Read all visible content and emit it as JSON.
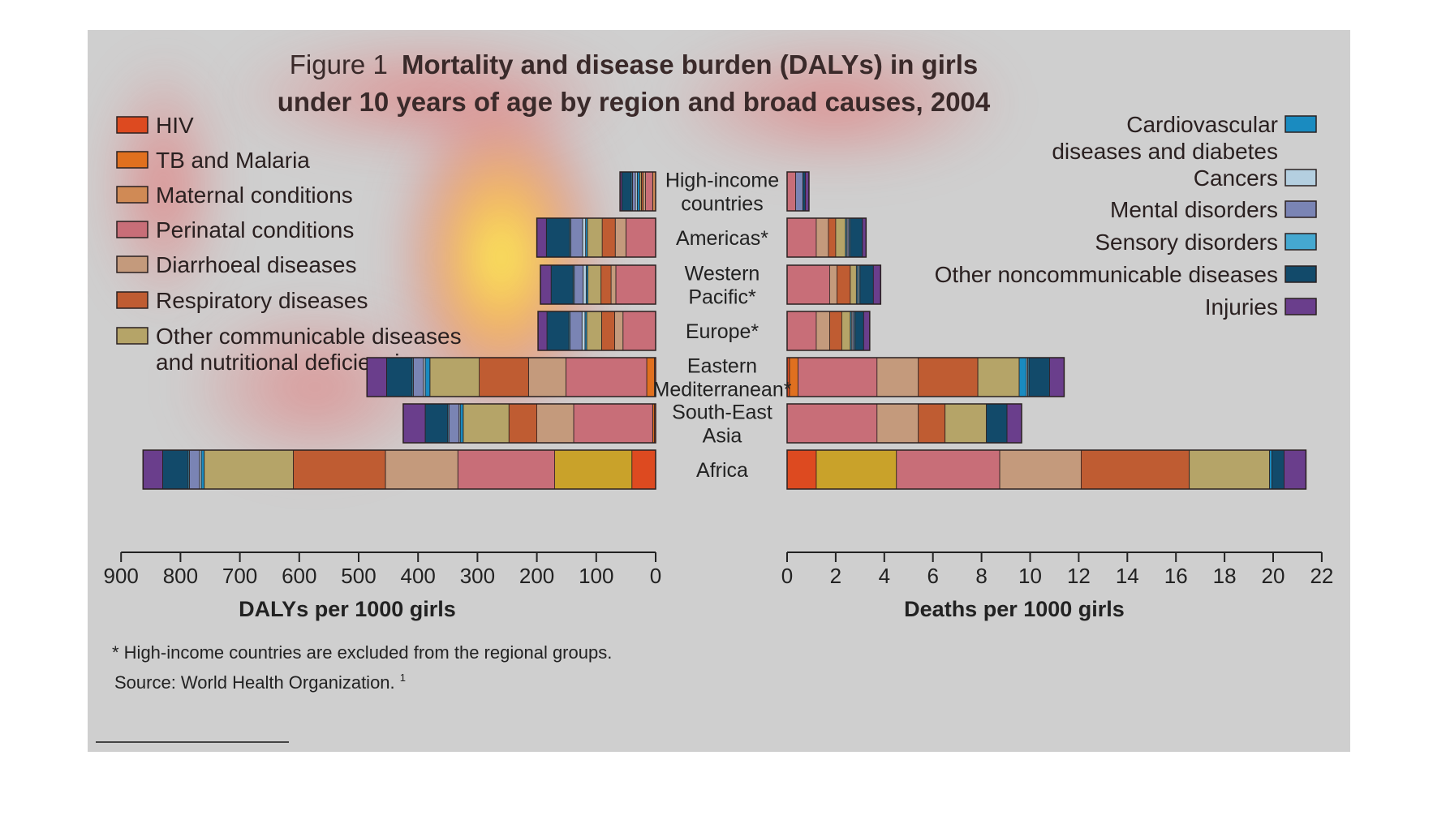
{
  "title": {
    "prefix": "Figure 1",
    "line1": "Mortality and disease burden (DALYs) in girls",
    "line2": "under 10 years of age by region and broad causes, 2004"
  },
  "causes": [
    {
      "key": "hiv",
      "label": "HIV",
      "color": "#dd4a20"
    },
    {
      "key": "tb",
      "label": "TB and Malaria",
      "color": "#e0701f"
    },
    {
      "key": "maternal",
      "label": "Maternal conditions",
      "color": "#d08a55"
    },
    {
      "key": "perinatal",
      "label": "Perinatal conditions",
      "color": "#c86e78"
    },
    {
      "key": "diarrhoeal",
      "label": "Diarrhoeal diseases",
      "color": "#c49a7c"
    },
    {
      "key": "respiratory",
      "label": "Respiratory diseases",
      "color": "#bf5c32"
    },
    {
      "key": "other_comm",
      "label": "Other communicable diseases\nand nutritional deficiencies",
      "color": "#b5a468"
    },
    {
      "key": "cardio",
      "label": "Cardiovascular\ndiseases and diabetes",
      "color": "#1a8bc0"
    },
    {
      "key": "cancers",
      "label": "Cancers",
      "color": "#b4cfe0"
    },
    {
      "key": "mental",
      "label": "Mental disorders",
      "color": "#7a84b4"
    },
    {
      "key": "sensory",
      "label": "Sensory disorders",
      "color": "#45a8d0"
    },
    {
      "key": "other_ncd",
      "label": "Other noncommunicable diseases",
      "color": "#124a6a"
    },
    {
      "key": "injuries",
      "label": "Injuries",
      "color": "#6a3e8c"
    }
  ],
  "africa_yellow": "#c9a22a",
  "chart_data": [
    {
      "type": "bar",
      "orientation": "horizontal-stacked",
      "direction": "right-to-left",
      "xlabel": "DALYs per 1000 girls",
      "xlim": [
        900,
        0
      ],
      "ticks": [
        "900",
        "800",
        "700",
        "600",
        "500",
        "400",
        "300",
        "200",
        "100",
        "0"
      ],
      "categories": [
        "High-income\ncountries",
        "Americas*",
        "Western\nPacific*",
        "Europe*",
        "Eastern\nMediterranean*",
        "South-East\nAsia",
        "Africa"
      ],
      "series": [
        {
          "name": "HIV",
          "values": [
            0,
            0,
            0,
            0,
            2,
            2,
            40
          ]
        },
        {
          "name": "TB and Malaria",
          "values": [
            0,
            0,
            0,
            0,
            13,
            3,
            130
          ]
        },
        {
          "name": "Maternal conditions",
          "values": [
            5,
            0,
            0,
            0,
            0,
            0,
            0
          ]
        },
        {
          "name": "Perinatal conditions",
          "values": [
            12,
            50,
            67,
            55,
            136,
            133,
            163
          ]
        },
        {
          "name": "Diarrhoeal diseases",
          "values": [
            4,
            18,
            8,
            14,
            63,
            62,
            122
          ]
        },
        {
          "name": "Respiratory diseases",
          "values": [
            3,
            22,
            17,
            22,
            83,
            47,
            155
          ]
        },
        {
          "name": "Other communicable diseases\nand nutritional deficiencies",
          "values": [
            3,
            25,
            22,
            25,
            83,
            77,
            150
          ]
        },
        {
          "name": "Cardiovascular\ndiseases and diabetes",
          "values": [
            4,
            3,
            3,
            3,
            8,
            5,
            5
          ]
        },
        {
          "name": "Cancers",
          "values": [
            3,
            5,
            5,
            5,
            3,
            2,
            3
          ]
        },
        {
          "name": "Mental disorders",
          "values": [
            5,
            20,
            15,
            20,
            17,
            17,
            17
          ]
        },
        {
          "name": "Sensory disorders",
          "values": [
            2,
            2,
            2,
            2,
            2,
            2,
            2
          ]
        },
        {
          "name": "Other noncommunicable diseases",
          "values": [
            16,
            39,
            37,
            37,
            43,
            38,
            43
          ]
        },
        {
          "name": "Injuries",
          "values": [
            3,
            16,
            18,
            15,
            33,
            37,
            33
          ]
        }
      ]
    },
    {
      "type": "bar",
      "orientation": "horizontal-stacked",
      "direction": "left-to-right",
      "xlabel": "Deaths per 1000 girls",
      "xlim": [
        0,
        22
      ],
      "ticks": [
        "0",
        "2",
        "4",
        "6",
        "8",
        "10",
        "12",
        "14",
        "16",
        "18",
        "20",
        "22"
      ],
      "categories": [
        "High-income\ncountries",
        "Americas*",
        "Western\nPacific*",
        "Europe*",
        "Eastern\nMediterranean*",
        "South-East\nAsia",
        "Africa"
      ],
      "series": [
        {
          "name": "HIV",
          "values": [
            0,
            0,
            0,
            0,
            0.1,
            0,
            1.2
          ]
        },
        {
          "name": "TB and Malaria",
          "values": [
            0,
            0,
            0,
            0,
            0.35,
            0,
            3.3
          ]
        },
        {
          "name": "Maternal conditions",
          "values": [
            0,
            0,
            0,
            0,
            0,
            0,
            0
          ]
        },
        {
          "name": "Perinatal conditions",
          "values": [
            0.35,
            1.2,
            1.75,
            1.2,
            3.25,
            3.7,
            4.25
          ]
        },
        {
          "name": "Diarrhoeal diseases",
          "values": [
            0,
            0.5,
            0.3,
            0.55,
            1.7,
            1.7,
            3.35
          ]
        },
        {
          "name": "Respiratory diseases",
          "values": [
            0,
            0.3,
            0.55,
            0.5,
            2.45,
            1.1,
            4.45
          ]
        },
        {
          "name": "Other communicable diseases\nand nutritional deficiencies",
          "values": [
            0,
            0.4,
            0.25,
            0.35,
            1.7,
            1.7,
            3.3
          ]
        },
        {
          "name": "Cardiovascular\ndiseases and diabetes",
          "values": [
            0,
            0.05,
            0.05,
            0.05,
            0.3,
            0,
            0.1
          ]
        },
        {
          "name": "Cancers",
          "values": [
            0,
            0.05,
            0.05,
            0.05,
            0.05,
            0,
            0
          ]
        },
        {
          "name": "Mental disorders",
          "values": [
            0.3,
            0.05,
            0,
            0.05,
            0,
            0,
            0
          ]
        },
        {
          "name": "Sensory disorders",
          "values": [
            0,
            0.05,
            0.05,
            0.05,
            0.05,
            0,
            0
          ]
        },
        {
          "name": "Other noncommunicable diseases",
          "values": [
            0.1,
            0.5,
            0.55,
            0.35,
            0.85,
            0.85,
            0.5
          ]
        },
        {
          "name": "Injuries",
          "values": [
            0.15,
            0.15,
            0.3,
            0.25,
            0.6,
            0.6,
            0.9
          ]
        }
      ]
    }
  ],
  "footnote": "* High-income countries are excluded from the regional groups.",
  "source": "Source: World Health Organization.",
  "source_ref": "1"
}
